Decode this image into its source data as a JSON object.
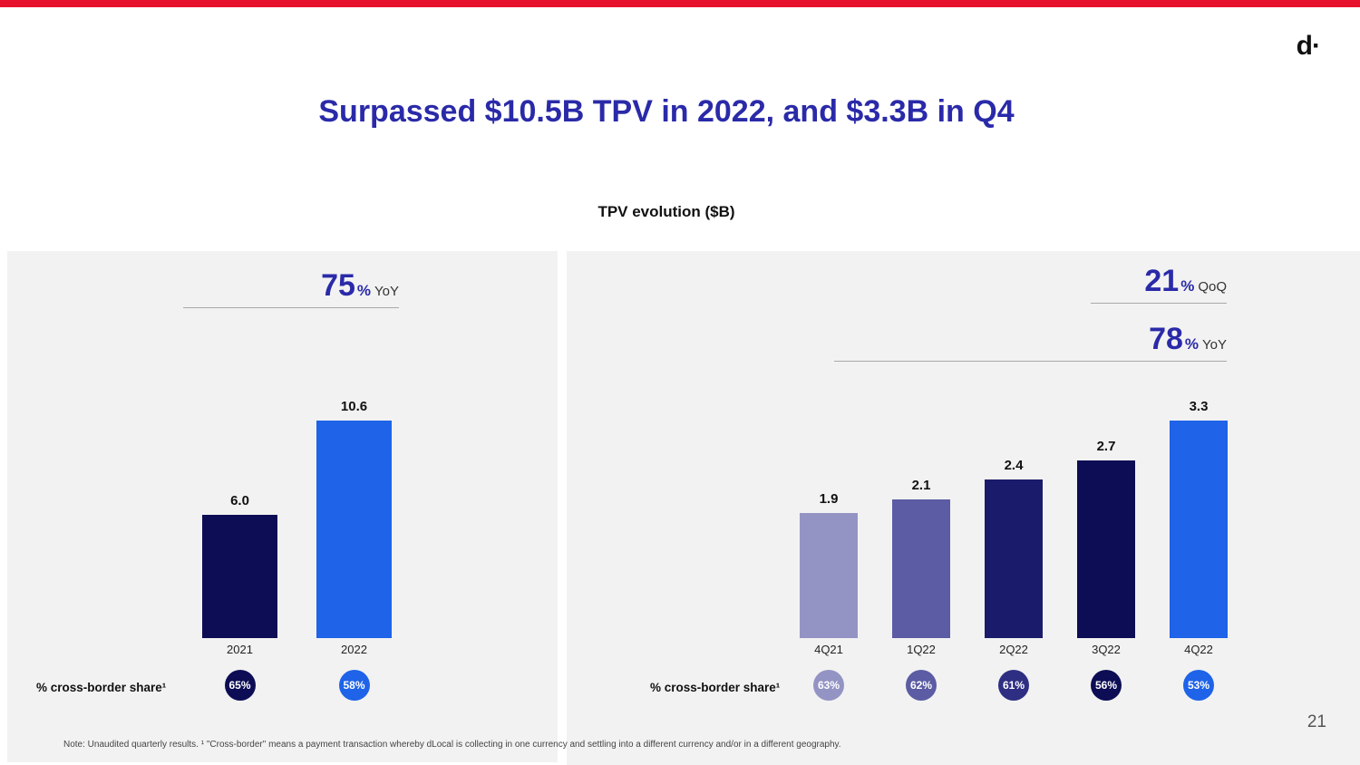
{
  "page": {
    "logo": "d·",
    "title": "Surpassed $10.5B TPV in 2022, and $3.3B in Q4",
    "subtitle": "TPV evolution ($B)",
    "note": "Note: Unaudited quarterly results. ¹ \"Cross-border\" means a payment transaction whereby dLocal is collecting in one currency and settling into a different currency and/or in a different geography.",
    "page_number": "21"
  },
  "colors": {
    "accent_red": "#E8112D",
    "title_blue": "#2A2AA9",
    "panel_bg": "#F2F2F2",
    "underline_gray": "#A9A9A9",
    "navy": "#0D0D55",
    "bright_blue": "#1E63E8"
  },
  "chart_data": [
    {
      "type": "bar",
      "name": "annual-tpv",
      "annotations": [
        {
          "number": "75",
          "unit": "%",
          "label": "YoY"
        }
      ],
      "categories": [
        "2021",
        "2022"
      ],
      "values": [
        6.0,
        10.6
      ],
      "value_labels": [
        "6.0",
        "10.6"
      ],
      "bar_colors": [
        "#0D0D55",
        "#1E63E8"
      ],
      "ylim": [
        0,
        11
      ],
      "grid": false,
      "legend": "none",
      "cross_border": {
        "label": "% cross-border share¹",
        "shares": [
          "65%",
          "58%"
        ],
        "colors": [
          "#0D0D55",
          "#1E63E8"
        ]
      }
    },
    {
      "type": "bar",
      "name": "quarterly-tpv",
      "annotations": [
        {
          "number": "21",
          "unit": "%",
          "label": "QoQ"
        },
        {
          "number": "78",
          "unit": "%",
          "label": "YoY"
        }
      ],
      "categories": [
        "4Q21",
        "1Q22",
        "2Q22",
        "3Q22",
        "4Q22"
      ],
      "values": [
        1.9,
        2.1,
        2.4,
        2.7,
        3.3
      ],
      "value_labels": [
        "1.9",
        "2.1",
        "2.4",
        "2.7",
        "3.3"
      ],
      "bar_colors": [
        "#9394C4",
        "#5B5CA3",
        "#1B1B6B",
        "#0D0D55",
        "#1E63E8"
      ],
      "ylim": [
        0,
        3.6
      ],
      "grid": false,
      "legend": "none",
      "cross_border": {
        "label": "% cross-border share¹",
        "shares": [
          "63%",
          "62%",
          "61%",
          "56%",
          "53%"
        ],
        "colors": [
          "#9394C4",
          "#5B5CA3",
          "#2E2E83",
          "#0D0D55",
          "#1E63E8"
        ]
      }
    }
  ]
}
